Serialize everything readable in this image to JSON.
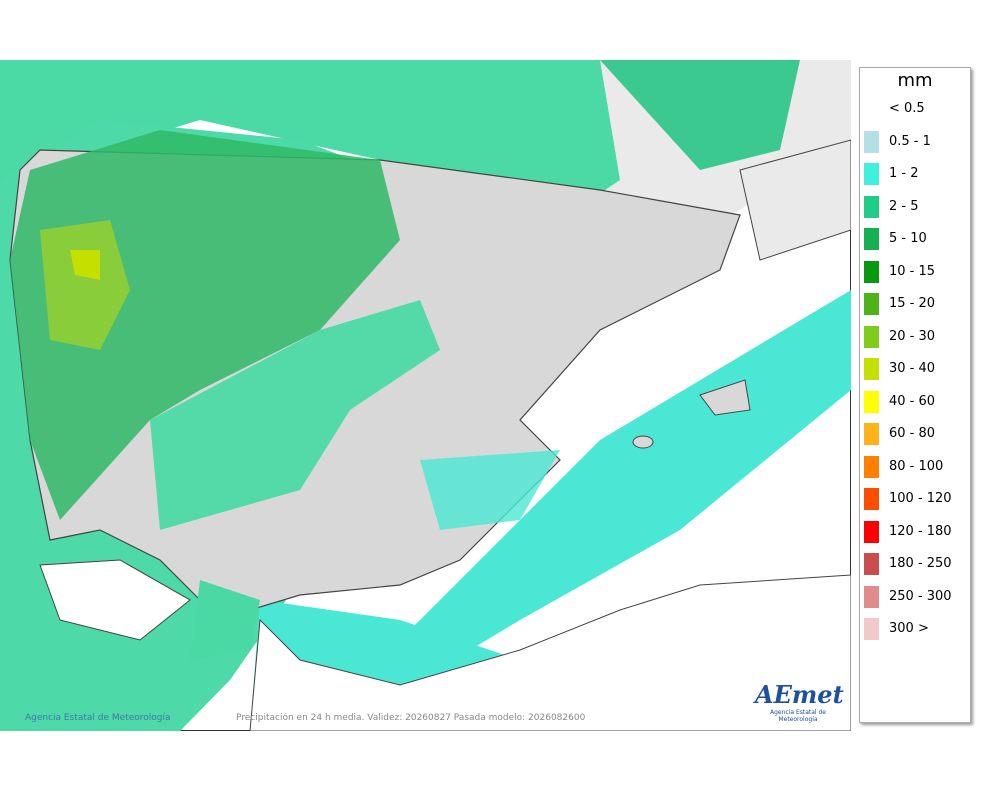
{
  "legend": {
    "unit": "mm",
    "items": [
      {
        "label": "< 0.5"
      },
      {
        "label": "0.5 - 1",
        "color": "#b2e0e6"
      },
      {
        "label": "1 - 2",
        "color": "#3ff0dc"
      },
      {
        "label": "2 - 5",
        "color": "#1fcc88"
      },
      {
        "label": "5 - 10",
        "color": "#16b050"
      },
      {
        "label": "10 - 15",
        "color": "#0a980f"
      },
      {
        "label": "15 - 20",
        "color": "#4cb31a"
      },
      {
        "label": "20 - 30",
        "color": "#80cc1a"
      },
      {
        "label": "30 - 40",
        "color": "#c4e000"
      },
      {
        "label": "40 - 60",
        "color": "#ffff00"
      },
      {
        "label": "60 - 80",
        "color": "#ffb31a"
      },
      {
        "label": "80 - 100",
        "color": "#ff8000"
      },
      {
        "label": "100 - 120",
        "color": "#ff4d00"
      },
      {
        "label": "120 - 180",
        "color": "#ff0000"
      },
      {
        "label": "180 - 250",
        "color": "#cc4d4d"
      },
      {
        "label": "250 - 300",
        "color": "#e08c8c"
      },
      {
        "label": "300 >",
        "color": "#f2c8c8"
      }
    ]
  },
  "footer": {
    "caption": "Precipitación en 24 h media. Validez: 20260827 Pasada modelo: 2026082600",
    "credit": "Agencia Estatal de Meteorología"
  },
  "logo": {
    "name": "AEmet",
    "subtitle": "Agencia Estatal de Meteorología"
  }
}
